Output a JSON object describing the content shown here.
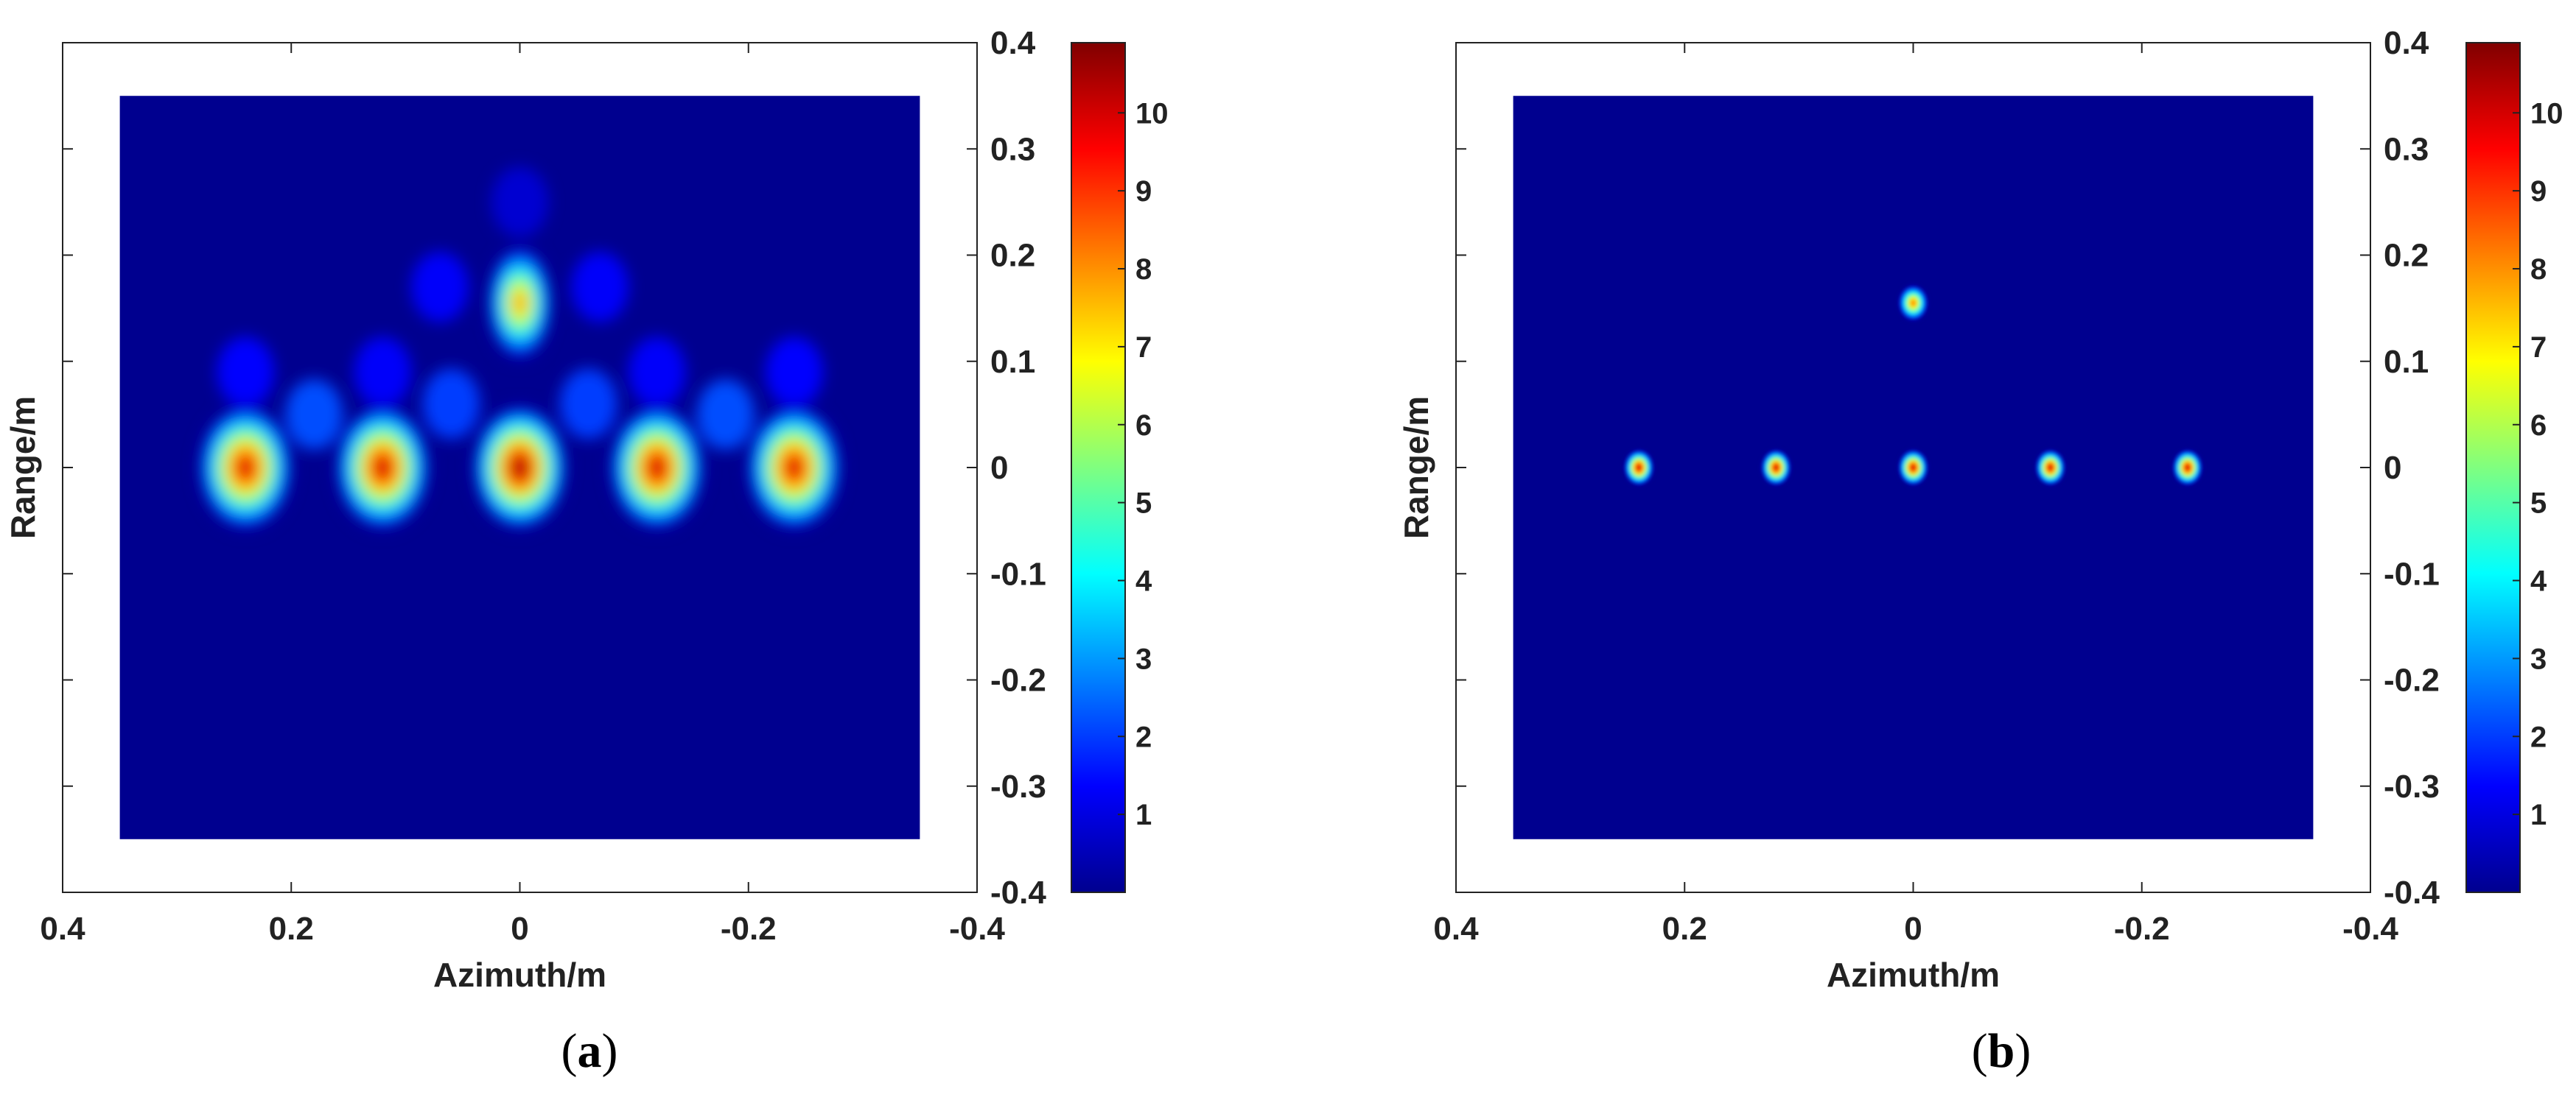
{
  "chart_data": [
    {
      "type": "heatmap",
      "panel_label": "a",
      "xlabel": "Azimuth/m",
      "ylabel": "Range/m",
      "xlim": [
        0.4,
        -0.4
      ],
      "ylim": [
        -0.4,
        0.4
      ],
      "x_reversed": true,
      "xticks": [
        0.4,
        0.2,
        0,
        -0.2,
        -0.4
      ],
      "xtick_labels": [
        "0.4",
        "0.2",
        "0",
        "-0.2",
        "-0.4"
      ],
      "yticks": [
        0.4,
        0.3,
        0.2,
        0.1,
        0,
        -0.1,
        -0.2,
        -0.3,
        -0.4
      ],
      "ytick_labels": [
        "0.4",
        "0.3",
        "0.2",
        "0.1",
        "0",
        "-0.1",
        "-0.2",
        "-0.3",
        "-0.4"
      ],
      "yaxis_location": "right",
      "image_extent": {
        "x": [
          0.35,
          -0.35
        ],
        "y": [
          -0.35,
          0.35
        ]
      },
      "colormap": "jet",
      "clim": [
        0,
        10.9
      ],
      "colorbar_ticks": [
        1,
        2,
        3,
        4,
        5,
        6,
        7,
        8,
        9,
        10
      ],
      "colorbar_tick_labels": [
        "1",
        "2",
        "3",
        "4",
        "5",
        "6",
        "7",
        "8",
        "9",
        "10"
      ],
      "peaks": [
        {
          "x": 0.24,
          "y": 0,
          "amplitude": 10.2
        },
        {
          "x": 0.12,
          "y": 0,
          "amplitude": 10.4
        },
        {
          "x": 0,
          "y": 0,
          "amplitude": 10.9
        },
        {
          "x": -0.12,
          "y": 0,
          "amplitude": 10.4
        },
        {
          "x": -0.24,
          "y": 0,
          "amplitude": 10.2
        },
        {
          "x": 0,
          "y": 0.155,
          "amplitude": 8.2
        }
      ],
      "sidelobes": [
        {
          "x": 0.18,
          "y": 0.05,
          "amplitude": 2.2
        },
        {
          "x": 0.06,
          "y": 0.06,
          "amplitude": 2.0
        },
        {
          "x": -0.06,
          "y": 0.06,
          "amplitude": 2.0
        },
        {
          "x": -0.18,
          "y": 0.05,
          "amplitude": 2.2
        },
        {
          "x": 0.24,
          "y": 0.09,
          "amplitude": 1.4
        },
        {
          "x": 0.12,
          "y": 0.09,
          "amplitude": 1.3
        },
        {
          "x": -0.12,
          "y": 0.09,
          "amplitude": 1.3
        },
        {
          "x": -0.24,
          "y": 0.09,
          "amplitude": 1.4
        },
        {
          "x": 0.07,
          "y": 0.17,
          "amplitude": 1.3
        },
        {
          "x": -0.07,
          "y": 0.17,
          "amplitude": 1.3
        },
        {
          "x": 0,
          "y": 0.25,
          "amplitude": 0.8
        }
      ],
      "background_value": 0
    },
    {
      "type": "heatmap",
      "panel_label": "b",
      "xlabel": "Azimuth/m",
      "ylabel": "Range/m",
      "xlim": [
        0.4,
        -0.4
      ],
      "ylim": [
        -0.4,
        0.4
      ],
      "x_reversed": true,
      "xticks": [
        0.4,
        0.2,
        0,
        -0.2,
        -0.4
      ],
      "xtick_labels": [
        "0.4",
        "0.2",
        "0",
        "-0.2",
        "-0.4"
      ],
      "yticks": [
        0.4,
        0.3,
        0.2,
        0.1,
        0,
        -0.1,
        -0.2,
        -0.3,
        -0.4
      ],
      "ytick_labels": [
        "0.4",
        "0.3",
        "0.2",
        "0.1",
        "0",
        "-0.1",
        "-0.2",
        "-0.3",
        "-0.4"
      ],
      "yaxis_location": "right",
      "image_extent": {
        "x": [
          0.35,
          -0.35
        ],
        "y": [
          -0.35,
          0.35
        ]
      },
      "colormap": "jet",
      "clim": [
        0,
        10.9
      ],
      "colorbar_ticks": [
        1,
        2,
        3,
        4,
        5,
        6,
        7,
        8,
        9,
        10
      ],
      "colorbar_tick_labels": [
        "1",
        "2",
        "3",
        "4",
        "5",
        "6",
        "7",
        "8",
        "9",
        "10"
      ],
      "peaks": [
        {
          "x": 0.24,
          "y": 0,
          "amplitude": 10.2
        },
        {
          "x": 0.12,
          "y": 0,
          "amplitude": 10.2
        },
        {
          "x": 0,
          "y": 0,
          "amplitude": 10.2
        },
        {
          "x": -0.12,
          "y": 0,
          "amplitude": 10.2
        },
        {
          "x": -0.24,
          "y": 0,
          "amplitude": 10.2
        },
        {
          "x": 0,
          "y": 0.155,
          "amplitude": 8.5
        }
      ],
      "sidelobes": [],
      "background_value": 0
    }
  ]
}
